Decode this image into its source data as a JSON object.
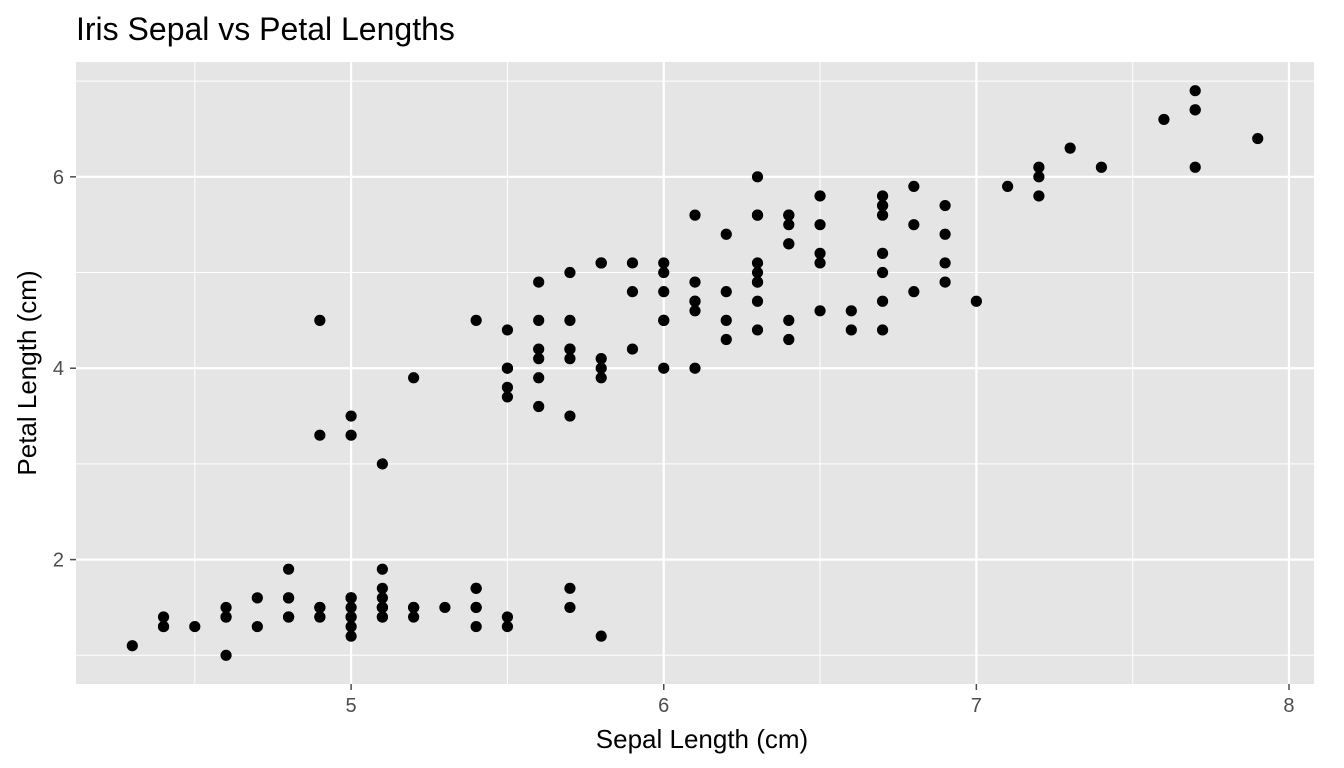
{
  "chart_data": {
    "type": "scatter",
    "title": "Iris Sepal vs Petal Lengths",
    "xlabel": "Sepal Length (cm)",
    "ylabel": "Petal Length (cm)",
    "xlim": [
      4.12,
      8.08
    ],
    "ylim": [
      0.7,
      7.2
    ],
    "xticks": [
      5,
      6,
      7,
      8
    ],
    "yticks": [
      2,
      4,
      6
    ],
    "xticks_minor": [
      4.5,
      5.5,
      6.5,
      7.5
    ],
    "yticks_minor": [
      1,
      3,
      5,
      7
    ],
    "grid": true,
    "legend": "none",
    "colors": {
      "panel": "#e5e5e5",
      "grid": "#ffffff",
      "point": "#000000",
      "tick": "#4d4d4d"
    },
    "points": [
      [
        5.1,
        1.4
      ],
      [
        4.9,
        1.4
      ],
      [
        4.7,
        1.3
      ],
      [
        4.6,
        1.5
      ],
      [
        5.0,
        1.4
      ],
      [
        5.4,
        1.7
      ],
      [
        4.6,
        1.4
      ],
      [
        5.0,
        1.5
      ],
      [
        4.4,
        1.4
      ],
      [
        4.9,
        1.5
      ],
      [
        5.4,
        1.5
      ],
      [
        4.8,
        1.6
      ],
      [
        4.8,
        1.4
      ],
      [
        4.3,
        1.1
      ],
      [
        5.8,
        1.2
      ],
      [
        5.7,
        1.5
      ],
      [
        5.4,
        1.3
      ],
      [
        5.1,
        1.4
      ],
      [
        5.7,
        1.7
      ],
      [
        5.1,
        1.5
      ],
      [
        5.4,
        1.7
      ],
      [
        5.1,
        1.5
      ],
      [
        4.6,
        1.0
      ],
      [
        5.1,
        1.7
      ],
      [
        4.8,
        1.9
      ],
      [
        5.0,
        1.6
      ],
      [
        5.0,
        1.6
      ],
      [
        5.2,
        1.5
      ],
      [
        5.2,
        1.4
      ],
      [
        4.7,
        1.6
      ],
      [
        4.8,
        1.6
      ],
      [
        5.4,
        1.5
      ],
      [
        5.2,
        1.5
      ],
      [
        5.5,
        1.4
      ],
      [
        4.9,
        1.5
      ],
      [
        5.0,
        1.2
      ],
      [
        5.5,
        1.3
      ],
      [
        4.9,
        1.4
      ],
      [
        4.4,
        1.3
      ],
      [
        5.1,
        1.5
      ],
      [
        5.0,
        1.3
      ],
      [
        4.5,
        1.3
      ],
      [
        4.4,
        1.3
      ],
      [
        5.0,
        1.6
      ],
      [
        5.1,
        1.9
      ],
      [
        4.8,
        1.4
      ],
      [
        5.1,
        1.6
      ],
      [
        4.6,
        1.4
      ],
      [
        5.3,
        1.5
      ],
      [
        5.0,
        1.4
      ],
      [
        7.0,
        4.7
      ],
      [
        6.4,
        4.5
      ],
      [
        6.9,
        4.9
      ],
      [
        5.5,
        4.0
      ],
      [
        6.5,
        4.6
      ],
      [
        5.7,
        4.5
      ],
      [
        6.3,
        4.7
      ],
      [
        4.9,
        3.3
      ],
      [
        6.6,
        4.6
      ],
      [
        5.2,
        3.9
      ],
      [
        5.0,
        3.5
      ],
      [
        5.9,
        4.2
      ],
      [
        6.0,
        4.0
      ],
      [
        6.1,
        4.7
      ],
      [
        5.6,
        3.6
      ],
      [
        6.7,
        4.4
      ],
      [
        5.6,
        4.5
      ],
      [
        5.8,
        4.1
      ],
      [
        6.2,
        4.5
      ],
      [
        5.6,
        3.9
      ],
      [
        5.9,
        4.8
      ],
      [
        6.1,
        4.0
      ],
      [
        6.3,
        4.9
      ],
      [
        6.1,
        4.7
      ],
      [
        6.4,
        4.3
      ],
      [
        6.6,
        4.4
      ],
      [
        6.8,
        4.8
      ],
      [
        6.7,
        5.0
      ],
      [
        6.0,
        4.5
      ],
      [
        5.7,
        3.5
      ],
      [
        5.5,
        3.8
      ],
      [
        5.5,
        3.7
      ],
      [
        5.8,
        3.9
      ],
      [
        6.0,
        5.1
      ],
      [
        5.4,
        4.5
      ],
      [
        6.0,
        4.5
      ],
      [
        6.7,
        4.7
      ],
      [
        6.3,
        4.4
      ],
      [
        5.6,
        4.1
      ],
      [
        5.5,
        4.0
      ],
      [
        5.5,
        4.4
      ],
      [
        6.1,
        4.6
      ],
      [
        5.8,
        4.0
      ],
      [
        5.0,
        3.3
      ],
      [
        5.6,
        4.2
      ],
      [
        5.7,
        4.2
      ],
      [
        5.7,
        4.2
      ],
      [
        6.2,
        4.3
      ],
      [
        5.1,
        3.0
      ],
      [
        5.7,
        4.1
      ],
      [
        6.3,
        6.0
      ],
      [
        5.8,
        5.1
      ],
      [
        7.1,
        5.9
      ],
      [
        6.3,
        5.6
      ],
      [
        6.5,
        5.8
      ],
      [
        7.6,
        6.6
      ],
      [
        4.9,
        4.5
      ],
      [
        7.3,
        6.3
      ],
      [
        6.7,
        5.8
      ],
      [
        7.2,
        6.1
      ],
      [
        6.5,
        5.1
      ],
      [
        6.4,
        5.3
      ],
      [
        6.8,
        5.5
      ],
      [
        5.7,
        5.0
      ],
      [
        5.8,
        5.1
      ],
      [
        6.4,
        5.3
      ],
      [
        6.5,
        5.5
      ],
      [
        7.7,
        6.7
      ],
      [
        7.7,
        6.9
      ],
      [
        6.0,
        5.0
      ],
      [
        6.9,
        5.7
      ],
      [
        5.6,
        4.9
      ],
      [
        7.7,
        6.7
      ],
      [
        6.3,
        4.9
      ],
      [
        6.7,
        5.7
      ],
      [
        7.2,
        6.0
      ],
      [
        6.2,
        4.8
      ],
      [
        6.1,
        4.9
      ],
      [
        6.4,
        5.6
      ],
      [
        7.2,
        5.8
      ],
      [
        7.4,
        6.1
      ],
      [
        7.9,
        6.4
      ],
      [
        6.4,
        5.6
      ],
      [
        6.3,
        5.1
      ],
      [
        6.1,
        5.6
      ],
      [
        7.7,
        6.1
      ],
      [
        6.3,
        5.6
      ],
      [
        6.4,
        5.5
      ],
      [
        6.0,
        4.8
      ],
      [
        6.9,
        5.4
      ],
      [
        6.7,
        5.6
      ],
      [
        6.9,
        5.1
      ],
      [
        5.8,
        5.1
      ],
      [
        6.8,
        5.9
      ],
      [
        6.7,
        5.7
      ],
      [
        6.7,
        5.2
      ],
      [
        6.3,
        5.0
      ],
      [
        6.5,
        5.2
      ],
      [
        6.2,
        5.4
      ],
      [
        5.9,
        5.1
      ]
    ]
  }
}
